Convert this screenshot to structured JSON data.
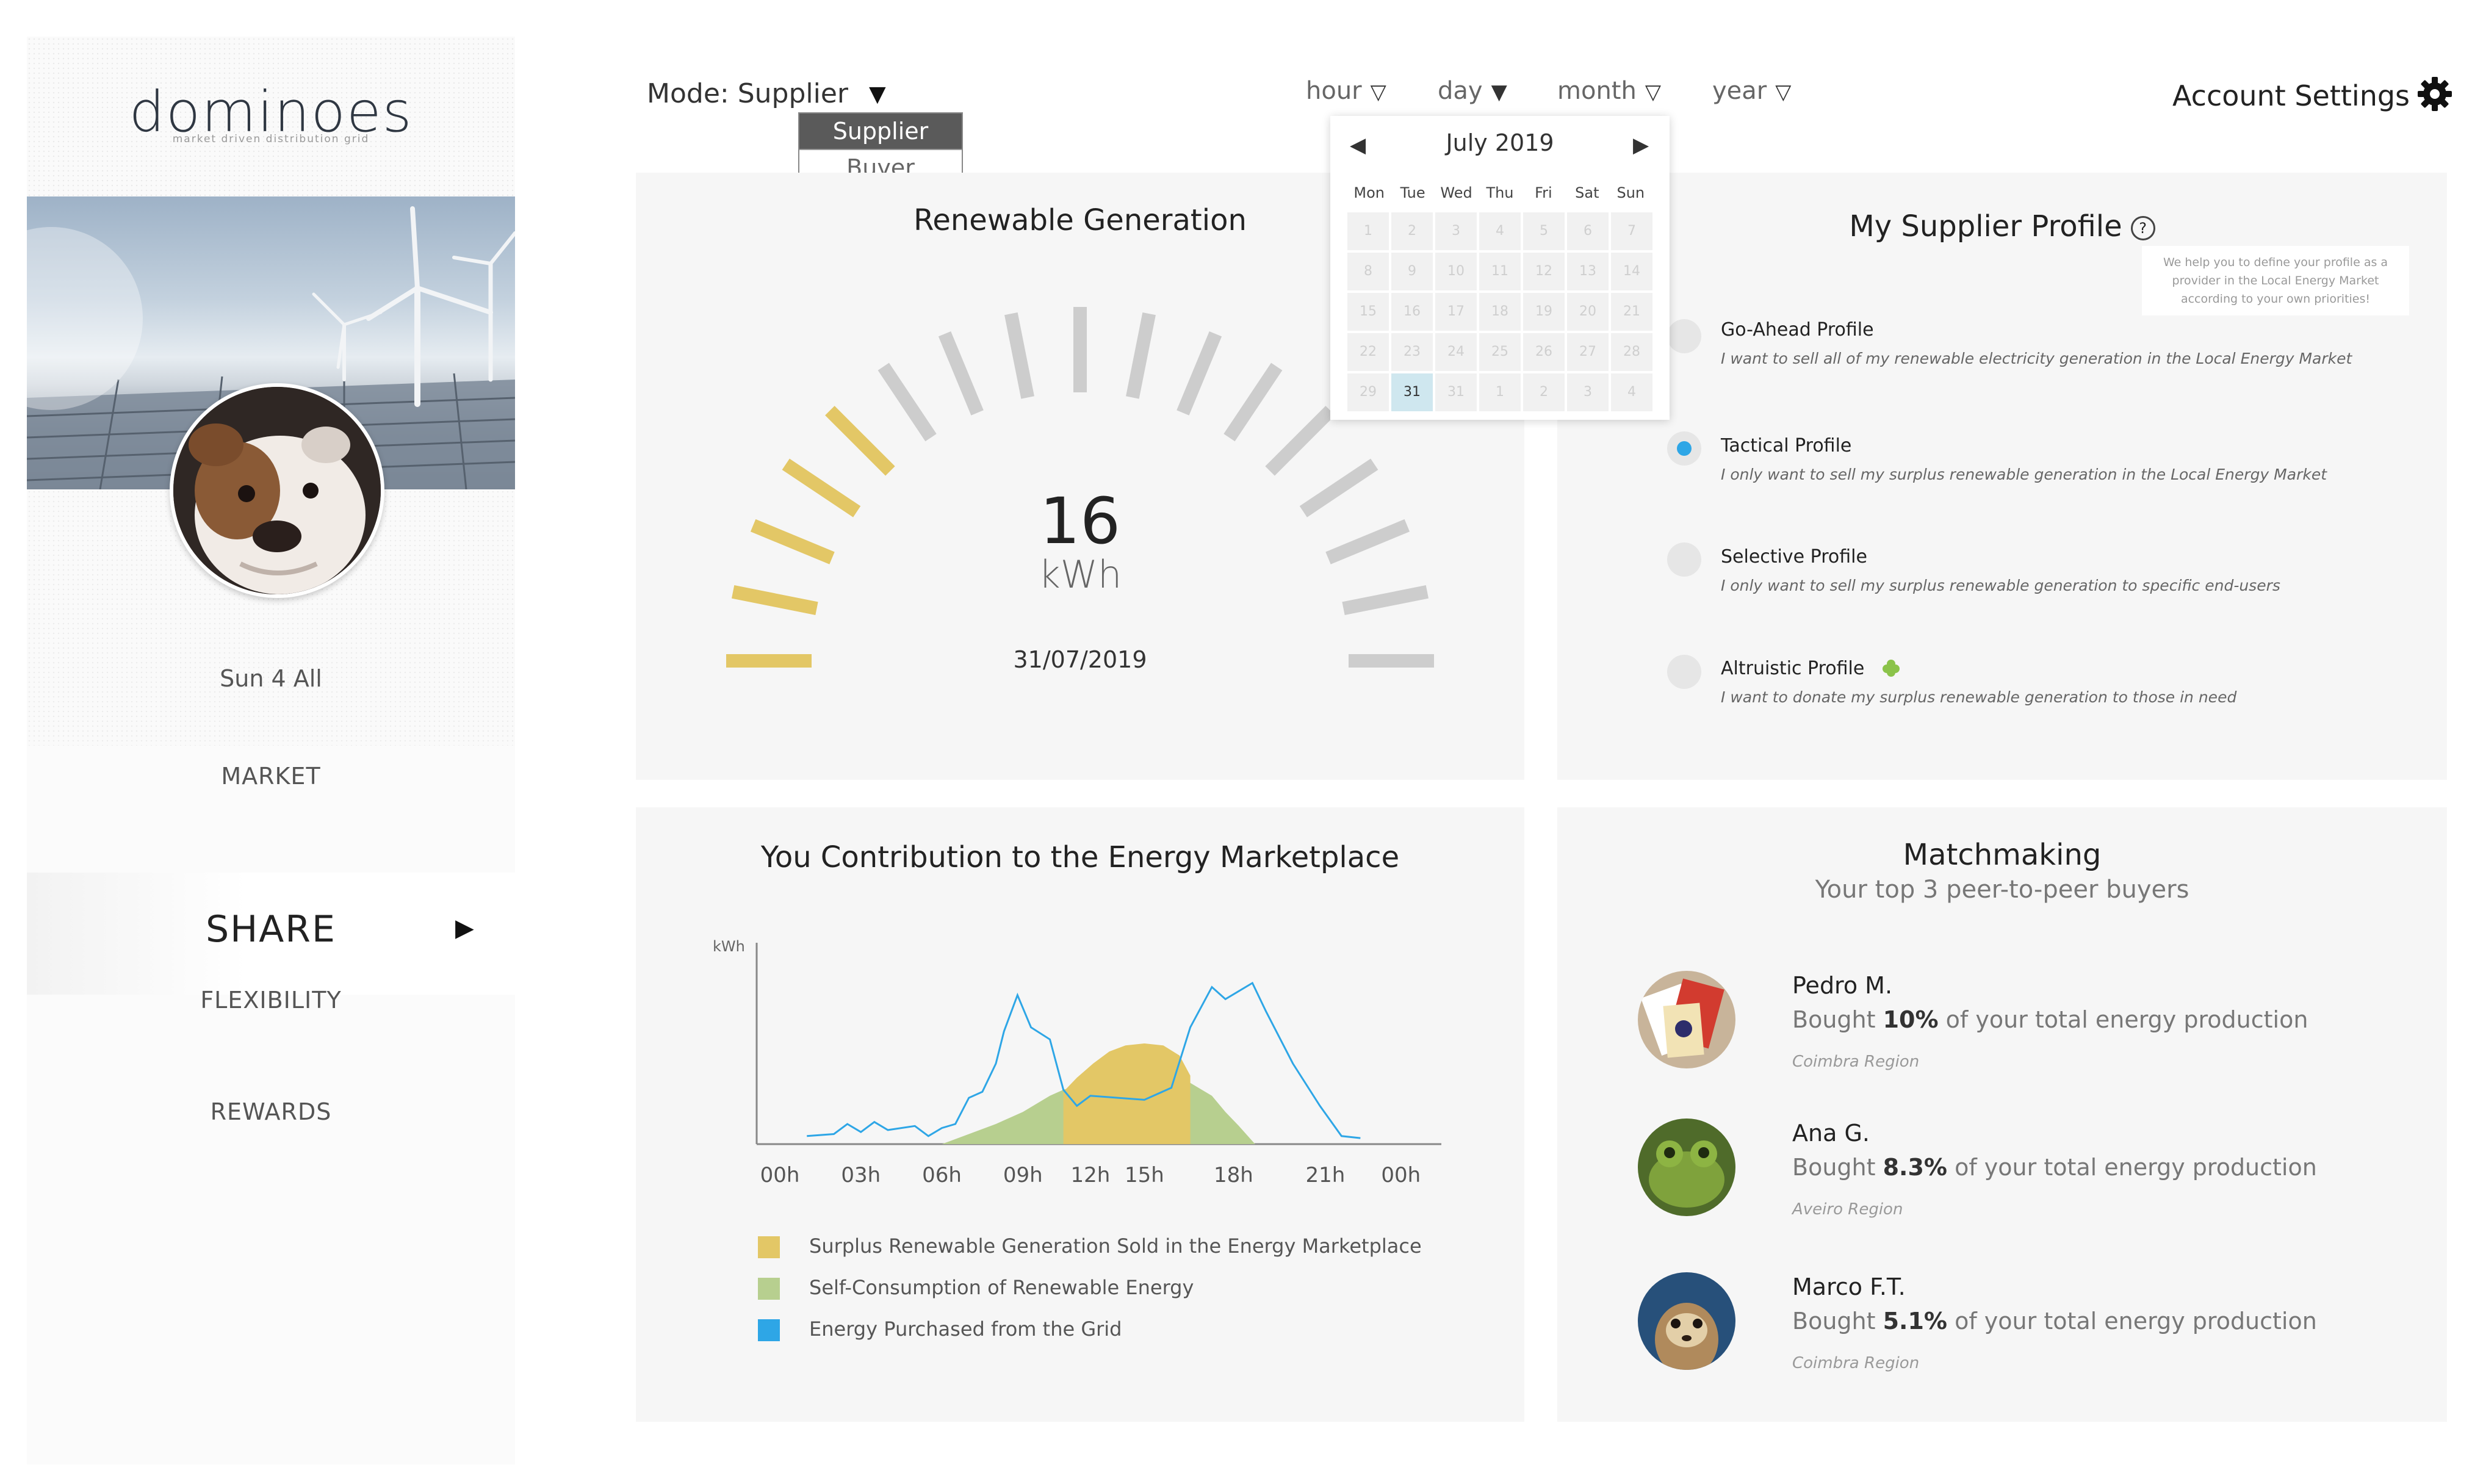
{
  "sidebar": {
    "logo": "dominoes",
    "logo_tagline": "market driven distribution grid",
    "user_name": "Sun 4 All",
    "nav": {
      "market": "MARKET",
      "share": "SHARE",
      "flexibility": "FLEXIBILITY",
      "rewards": "REWARDS"
    },
    "active_item": "SHARE"
  },
  "topbar": {
    "mode_label": "Mode: Supplier",
    "mode_options": [
      "Supplier",
      "Buyer"
    ],
    "mode_selected": "Supplier",
    "time_filters": [
      "hour",
      "day",
      "month",
      "year"
    ],
    "active_time_filter": "day",
    "account_settings": "Account Settings",
    "icons": {
      "mode_caret": "caret-down-icon",
      "settings": "gear-icon"
    }
  },
  "calendar": {
    "title": "July 2019",
    "weekdays": [
      "Mon",
      "Tue",
      "Wed",
      "Thu",
      "Fri",
      "Sat",
      "Sun"
    ],
    "days": [
      "1",
      "2",
      "3",
      "4",
      "5",
      "6",
      "7",
      "8",
      "9",
      "10",
      "11",
      "12",
      "13",
      "14",
      "15",
      "16",
      "17",
      "18",
      "19",
      "20",
      "21",
      "22",
      "23",
      "24",
      "25",
      "26",
      "27",
      "28",
      "29",
      "31",
      "31",
      "1",
      "2",
      "3",
      "4"
    ],
    "selected_day": "31"
  },
  "generation": {
    "title": "Renewable Generation",
    "value": "16",
    "unit": "kWh",
    "date": "31/07/2019",
    "gauge_level": 0.3,
    "gauge_segments": 17,
    "colors": {
      "active": "#e3c766",
      "inactive": "#cdcdcd"
    }
  },
  "profile": {
    "title": "My Supplier Profile",
    "help_icon": "question-circle-icon",
    "tip": "We help you to define your profile as a provider in the Local Energy Market according to your own priorities!",
    "options": [
      {
        "title": "Go-Ahead Profile",
        "desc": "I want to sell all of my renewable electricity generation in the Local Energy Market",
        "selected": false
      },
      {
        "title": "Tactical Profile",
        "desc": "I only want to sell my surplus renewable generation in the Local Energy Market",
        "selected": true
      },
      {
        "title": "Selective Profile",
        "desc": "I only want to sell my surplus renewable generation to specific end-users",
        "selected": false
      },
      {
        "title": "Altruistic Profile",
        "desc": "I want to donate my surplus renewable generation to those in need",
        "selected": false,
        "badge": "green-leaf-icon"
      }
    ]
  },
  "contribution": {
    "title": "You Contribution to the Energy Marketplace",
    "legend": [
      {
        "label": "Surplus Renewable Generation Sold in the Energy Marketplace",
        "color": "#e3c766"
      },
      {
        "label": "Self-Consumption of Renewable Energy",
        "color": "#b7cf8f"
      },
      {
        "label": "Energy Purchased from the Grid",
        "color": "#2ea6e6"
      }
    ]
  },
  "chart_data": {
    "type": "area",
    "title": "You Contribution to the Energy Marketplace",
    "ylabel": "kWh",
    "xlabel": "",
    "x_ticks": [
      "00h",
      "03h",
      "06h",
      "09h",
      "12h",
      "15h",
      "18h",
      "21h",
      "00h"
    ],
    "x_tick_hours": [
      0,
      3,
      6,
      9,
      11.5,
      13.5,
      16.8,
      20.2,
      23
    ],
    "ylim": [
      0,
      10
    ],
    "grid": false,
    "legend_position": "bottom",
    "series": [
      {
        "name": "Surplus Renewable Generation Sold in the Energy Marketplace",
        "kind": "area",
        "color": "#e3c766",
        "x": [
          10.5,
          11,
          11.6,
          12.2,
          12.8,
          13.5,
          14.2,
          14.8,
          15.2
        ],
        "values": [
          2.6,
          3.3,
          4.0,
          4.6,
          4.9,
          5.0,
          4.9,
          4.4,
          3.4
        ]
      },
      {
        "name": "Self-Consumption of Renewable Energy",
        "kind": "area",
        "color": "#b7cf8f",
        "x": [
          6,
          7,
          8,
          9,
          10,
          10.5,
          11,
          12,
          13,
          14,
          15,
          16,
          16.5,
          17,
          17.6
        ],
        "values": [
          0,
          0.5,
          1.0,
          1.6,
          2.4,
          2.7,
          2.9,
          3.1,
          3.2,
          3.2,
          3.2,
          2.4,
          1.6,
          0.9,
          0
        ]
      },
      {
        "name": "Energy Purchased from the Grid",
        "kind": "line",
        "color": "#2ea6e6",
        "x": [
          1,
          2,
          2.5,
          3,
          3.5,
          4,
          5,
          5.5,
          6,
          6.5,
          7,
          7.5,
          8,
          8.3,
          8.8,
          9.3,
          10,
          10.5,
          11,
          11.5,
          13.5,
          14.5,
          15.2,
          16,
          16.5,
          17,
          17.5,
          18,
          19,
          20,
          20.8,
          21.5
        ],
        "values": [
          0.4,
          0.5,
          1.0,
          0.6,
          1.1,
          0.7,
          0.9,
          0.4,
          0.8,
          1.0,
          2.3,
          2.6,
          4.0,
          5.6,
          7.4,
          5.8,
          5.2,
          2.7,
          1.9,
          2.4,
          2.2,
          2.8,
          5.8,
          7.8,
          7.2,
          7.6,
          8.0,
          6.6,
          4.0,
          1.9,
          0.4,
          0.3
        ]
      }
    ]
  },
  "matchmaking": {
    "title": "Matchmaking",
    "subtitle": "Your top 3 peer-to-peer buyers",
    "bought_prefix": "Bought",
    "bought_suffix": "of your total energy production",
    "buyers": [
      {
        "name": "Pedro M.",
        "percent": "10%",
        "region": "Coimbra Region",
        "avatar": "playing-cards-avatar"
      },
      {
        "name": "Ana G.",
        "percent": "8.3%",
        "region": "Aveiro Region",
        "avatar": "frog-avatar"
      },
      {
        "name": "Marco F.T.",
        "percent": "5.1%",
        "region": "Coimbra Region",
        "avatar": "meerkat-avatar"
      }
    ]
  }
}
